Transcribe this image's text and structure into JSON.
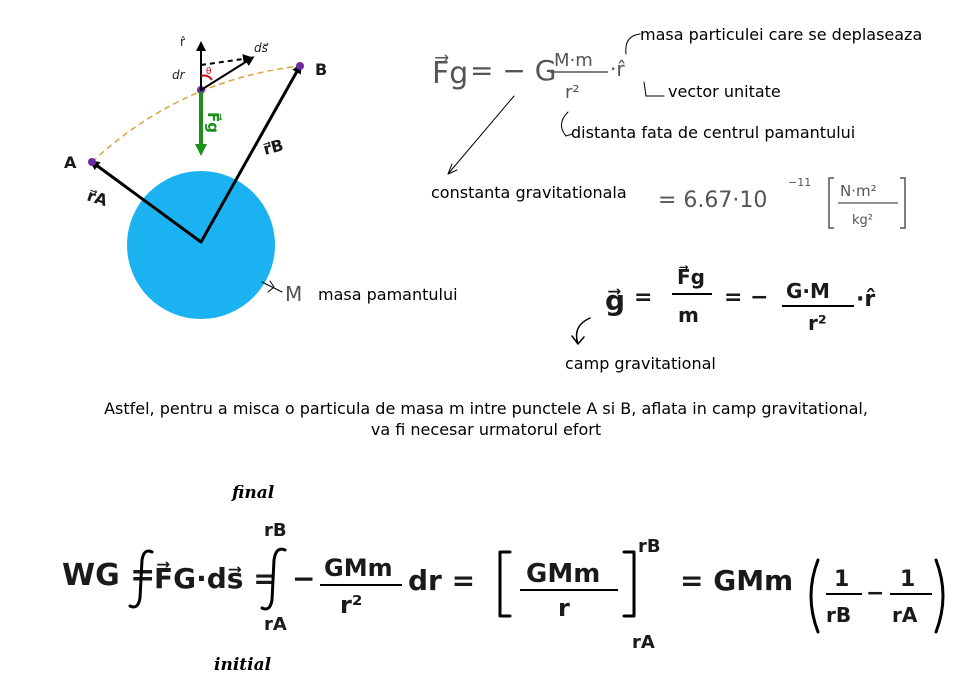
{
  "diagram": {
    "point_a": "A",
    "point_b": "B",
    "r_a": "r⃗A",
    "r_b": "r⃗B",
    "r_hat": "r̂",
    "dr": "dr",
    "ds": "ds⃗",
    "theta": "θ",
    "fg": "F⃗g",
    "earth_symbol": "M",
    "earth_label": "masa pamantului",
    "colors": {
      "earth": "#1ab2f0",
      "force": "#1a8f1a",
      "path": "#d9a441",
      "theta": "#d01010"
    }
  },
  "formula_force": {
    "lhs": "F⃗g",
    "rhs_left": "= − G",
    "numerator": "M·m",
    "denominator": "r²",
    "unit_vector": "·r̂"
  },
  "annotations": {
    "mass_particle": "masa particulei care se deplaseaza",
    "unit_vector": "vector unitate",
    "distance": "distanta fata de centrul pamantului",
    "constant_label": "constanta gravitationala",
    "constant_value": "= 6.67·10",
    "constant_exp": "−11",
    "unit_num": "N·m²",
    "unit_den": "kg²"
  },
  "formula_field": {
    "g": "g⃗",
    "eq1": "=",
    "frac1_num": "F⃗g",
    "frac1_den": "m",
    "eq2": "= −",
    "frac2_num": "G·M",
    "frac2_den": "r²",
    "unit": "·r̂",
    "label": "camp gravitational"
  },
  "paragraph": {
    "line1": "Astfel, pentru a misca o particula de masa m intre punctele A si B, aflata in camp gravitational,",
    "line2": "va fi necesar urmatorul efort"
  },
  "work": {
    "final_label": "final",
    "initial_label": "initial",
    "lhs": "WG =",
    "integral1_body": "F⃗G·ds⃗ =",
    "upper": "rB",
    "lower": "rA",
    "minus": "−",
    "frac_num": "GMm",
    "frac_den": "r²",
    "dr": "dr =",
    "bracket_num": "GMm",
    "bracket_den": "r",
    "eq_result": "= GMm",
    "one": "1",
    "rb_den": "rB",
    "ra_den": "rA",
    "minus2": "−"
  }
}
